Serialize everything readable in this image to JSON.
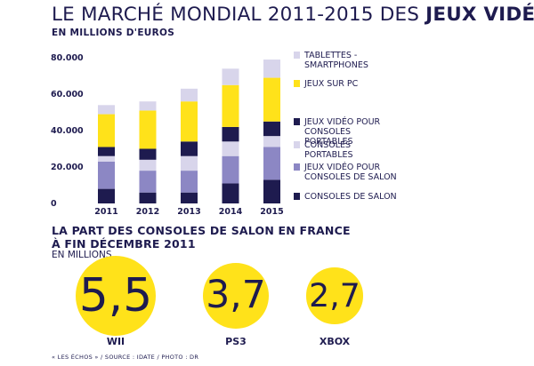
{
  "title_prefix": "LE MARCHÉ MONDIAL 2011-2015 DES ",
  "title_bold": "JEUX VIDÉO",
  "colors": {
    "navy": "#1e1b4f",
    "lavender": "#d8d5eb",
    "yellow": "#ffe21a",
    "periwinkle": "#8c87c4"
  },
  "chart_data": {
    "type": "bar",
    "stacked": true,
    "ylabel": "EN MILLIONS D'EUROS",
    "categories": [
      "2011",
      "2012",
      "2013",
      "2014",
      "2015"
    ],
    "ylim": [
      0,
      80000
    ],
    "yticks": [
      "0",
      "20.000",
      "40.000",
      "60.000",
      "80.000"
    ],
    "ytick_values": [
      0,
      20000,
      40000,
      60000,
      80000
    ],
    "legend_position": "right",
    "series": [
      {
        "name": "CONSOLES DE SALON",
        "color": "#1e1b4f",
        "values": [
          8000,
          6000,
          6000,
          11000,
          13000
        ]
      },
      {
        "name": "JEUX VIDÉO POUR CONSOLES DE SALON",
        "color": "#8c87c4",
        "values": [
          15000,
          12000,
          12000,
          15000,
          18000
        ]
      },
      {
        "name": "CONSOLES PORTABLES",
        "color": "#d8d5eb",
        "values": [
          3000,
          6000,
          8000,
          8000,
          6000
        ]
      },
      {
        "name": "JEUX VIDÉO POUR CONSOLES PORTABLES",
        "color": "#1e1b4f",
        "values": [
          5000,
          6000,
          8000,
          8000,
          8000
        ]
      },
      {
        "name": "JEUX SUR PC",
        "color": "#ffe21a",
        "values": [
          18000,
          21000,
          22000,
          23000,
          24000
        ]
      },
      {
        "name": "TABLETTES - SMARTPHONES",
        "color": "#d8d5eb",
        "values": [
          5000,
          5000,
          7000,
          9000,
          10000
        ]
      }
    ],
    "legend_order": [
      5,
      4,
      3,
      2,
      1,
      0
    ]
  },
  "section": {
    "title_line1": "LA PART DES CONSOLES DE SALON EN FRANCE",
    "title_line2": "À FIN DÉCEMBRE 2011",
    "unit": "EN MILLIONS"
  },
  "bubbles": [
    {
      "name": "WII",
      "value": "5,5",
      "amount": 5.5
    },
    {
      "name": "PS3",
      "value": "3,7",
      "amount": 3.7
    },
    {
      "name": "XBOX",
      "value": "2,7",
      "amount": 2.7
    }
  ],
  "source": "« LES ÉCHOS » / SOURCE : IDATE / PHOTO : DR"
}
